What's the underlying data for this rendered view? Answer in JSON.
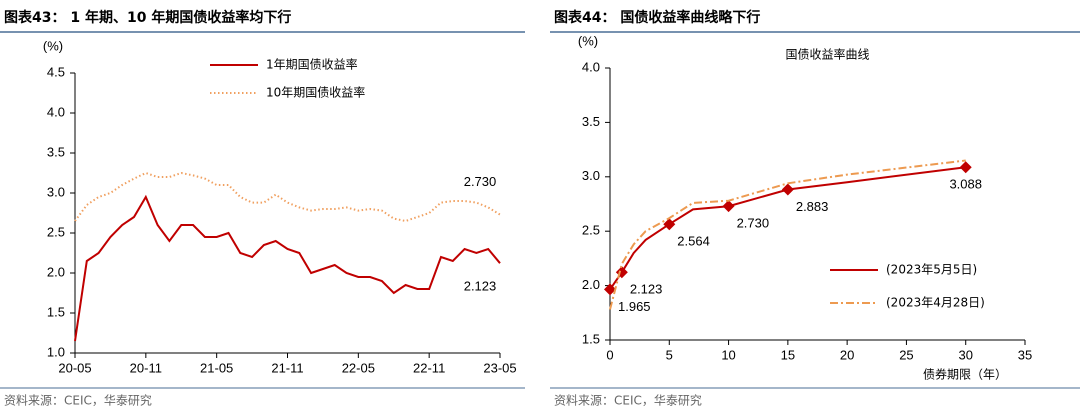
{
  "chart_data": [
    {
      "type": "line",
      "header": "图表43：  1 年期、10 年期国债收益率均下行",
      "ylabel": "(%)",
      "source": "资料来源：CEIC，华泰研究",
      "x": [
        "20-05",
        "20-06",
        "20-07",
        "20-08",
        "20-09",
        "20-10",
        "20-11",
        "20-12",
        "21-01",
        "21-02",
        "21-03",
        "21-04",
        "21-05",
        "21-06",
        "21-07",
        "21-08",
        "21-09",
        "21-10",
        "21-11",
        "21-12",
        "22-01",
        "22-02",
        "22-03",
        "22-04",
        "22-05",
        "22-06",
        "22-07",
        "22-08",
        "22-09",
        "22-10",
        "22-11",
        "22-12",
        "23-01",
        "23-02",
        "23-03",
        "23-04",
        "23-05"
      ],
      "xticks": [
        "20-05",
        "20-11",
        "21-05",
        "21-11",
        "22-05",
        "22-11",
        "23-05"
      ],
      "ylim": [
        1.0,
        4.5
      ],
      "yticks": [
        {
          "value": 1.0,
          "label": "1.0"
        },
        {
          "value": 1.5,
          "label": "1.5"
        },
        {
          "value": 2.0,
          "label": "2.0"
        },
        {
          "value": 2.5,
          "label": "2.5"
        },
        {
          "value": 3.0,
          "label": "3.0"
        },
        {
          "value": 3.5,
          "label": "3.5"
        },
        {
          "value": 4.0,
          "label": "4.0"
        },
        {
          "value": 4.5,
          "label": "4.5"
        }
      ],
      "legend": "top",
      "series": [
        {
          "name": "1年期国债收益率",
          "color": "#c00000",
          "dash": "solid",
          "end_label": "2.123",
          "values": [
            1.15,
            2.15,
            2.25,
            2.45,
            2.6,
            2.7,
            2.95,
            2.6,
            2.4,
            2.6,
            2.6,
            2.45,
            2.45,
            2.5,
            2.25,
            2.2,
            2.35,
            2.4,
            2.3,
            2.25,
            2.0,
            2.05,
            2.1,
            2.0,
            1.95,
            1.95,
            1.9,
            1.75,
            1.85,
            1.8,
            1.8,
            2.2,
            2.15,
            2.3,
            2.25,
            2.3,
            2.123
          ]
        },
        {
          "name": "10年期国债收益率",
          "color": "#f0a060",
          "dash": "dotted",
          "end_label": "2.730",
          "values": [
            2.65,
            2.85,
            2.95,
            3.0,
            3.1,
            3.18,
            3.25,
            3.2,
            3.2,
            3.25,
            3.22,
            3.18,
            3.1,
            3.1,
            2.95,
            2.88,
            2.88,
            2.98,
            2.88,
            2.82,
            2.78,
            2.8,
            2.8,
            2.82,
            2.78,
            2.8,
            2.78,
            2.68,
            2.65,
            2.7,
            2.75,
            2.88,
            2.9,
            2.9,
            2.88,
            2.82,
            2.73
          ]
        }
      ]
    },
    {
      "type": "line",
      "header": "图表44：  国债收益率曲线略下行",
      "title": "国债收益率曲线",
      "ylabel": "(%)",
      "xlabel": "债券期限（年）",
      "source": "资料来源：CEIC，华泰研究",
      "x": [
        0,
        1,
        2,
        3,
        5,
        7,
        10,
        15,
        20,
        30
      ],
      "xlim": [
        0,
        35
      ],
      "xticks": [
        0,
        5,
        10,
        15,
        20,
        25,
        30,
        35
      ],
      "ylim": [
        1.5,
        4.0
      ],
      "yticks": [
        {
          "value": 1.5,
          "label": "1.5"
        },
        {
          "value": 2.0,
          "label": "2.0"
        },
        {
          "value": 2.5,
          "label": "2.5"
        },
        {
          "value": 3.0,
          "label": "3.0"
        },
        {
          "value": 3.5,
          "label": "3.5"
        },
        {
          "value": 4.0,
          "label": "4.0"
        }
      ],
      "legend": "lower right",
      "series": [
        {
          "name": "(2023年5月5日)",
          "color": "#c00000",
          "dash": "solid",
          "values": [
            1.965,
            2.123,
            2.3,
            2.42,
            2.564,
            2.7,
            2.73,
            2.883,
            2.95,
            3.088
          ],
          "value_labels": [
            "1.965",
            "2.123",
            null,
            null,
            "2.564",
            null,
            "2.730",
            "2.883",
            null,
            "3.088"
          ]
        },
        {
          "name": "(2023年4月28日)",
          "color": "#ed9a50",
          "dash": "dashdot",
          "values": [
            1.78,
            2.2,
            2.38,
            2.5,
            2.62,
            2.76,
            2.78,
            2.94,
            3.02,
            3.15
          ]
        }
      ]
    }
  ]
}
